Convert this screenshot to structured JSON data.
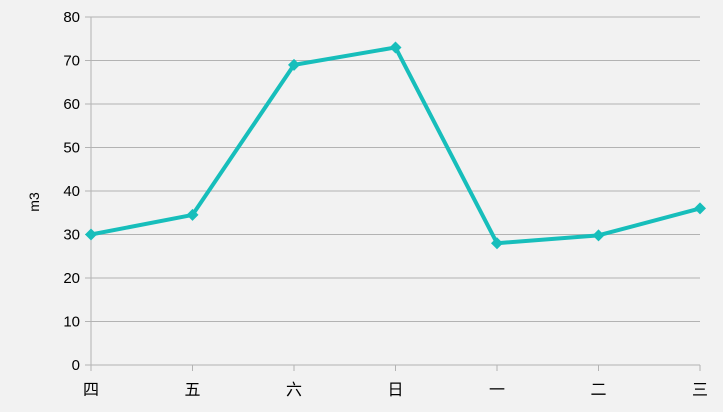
{
  "chart_data": {
    "type": "line",
    "categories": [
      "四",
      "五",
      "六",
      "日",
      "一",
      "二",
      "三"
    ],
    "series": [
      {
        "values": [
          30,
          34.5,
          69,
          73,
          28,
          29.8,
          36
        ],
        "color": "#17bebb"
      }
    ],
    "xlabel": "",
    "ylabel": "m3",
    "ylim": [
      0,
      80
    ],
    "yticks": [
      0,
      10,
      20,
      30,
      40,
      50,
      60,
      70,
      80
    ],
    "grid": true,
    "legend": "none",
    "colors": {
      "background": "#f2f2f2",
      "grid": "#b3b3b3",
      "axis": "#b3b3b3"
    }
  }
}
